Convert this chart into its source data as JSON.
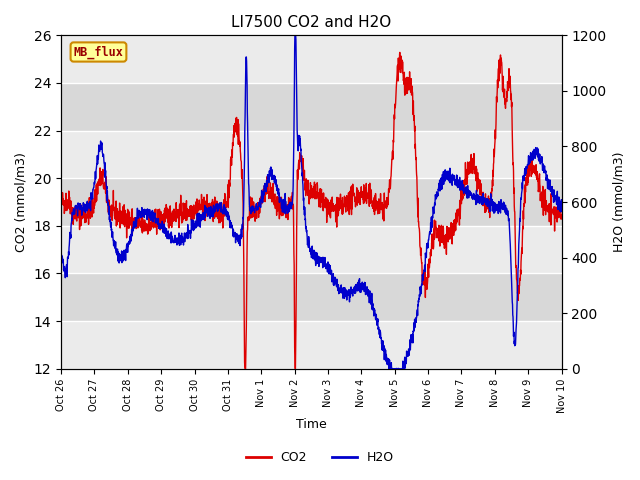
{
  "title": "LI7500 CO2 and H2O",
  "xlabel": "Time",
  "ylabel_left": "CO2 (mmol/m3)",
  "ylabel_right": "H2O (mmol/m3)",
  "ylim_left": [
    12,
    26
  ],
  "ylim_right": [
    0,
    1200
  ],
  "yticks_left": [
    12,
    14,
    16,
    18,
    20,
    22,
    24,
    26
  ],
  "yticks_right": [
    0,
    200,
    400,
    600,
    800,
    1000,
    1200
  ],
  "xtick_labels": [
    "Oct 26",
    "Oct 27",
    "Oct 28",
    "Oct 29",
    "Oct 30",
    "Oct 31",
    "Nov 1",
    "Nov 2",
    "Nov 3",
    "Nov 4",
    "Nov 5",
    "Nov 6",
    "Nov 7",
    "Nov 8",
    "Nov 9",
    "Nov 10"
  ],
  "co2_color": "#dd0000",
  "h2o_color": "#0000cc",
  "legend_co2": "CO2",
  "legend_h2o": "H2O",
  "annotation_text": "MB_flux",
  "annotation_bg": "#ffff99",
  "annotation_border": "#cc8800",
  "annotation_text_color": "#990000",
  "background_light": "#ebebeb",
  "background_dark": "#d8d8d8",
  "background_fig": "#ffffff",
  "grid_color": "#ffffff",
  "linewidth": 1.0,
  "n_days": 15,
  "n_points": 2000
}
